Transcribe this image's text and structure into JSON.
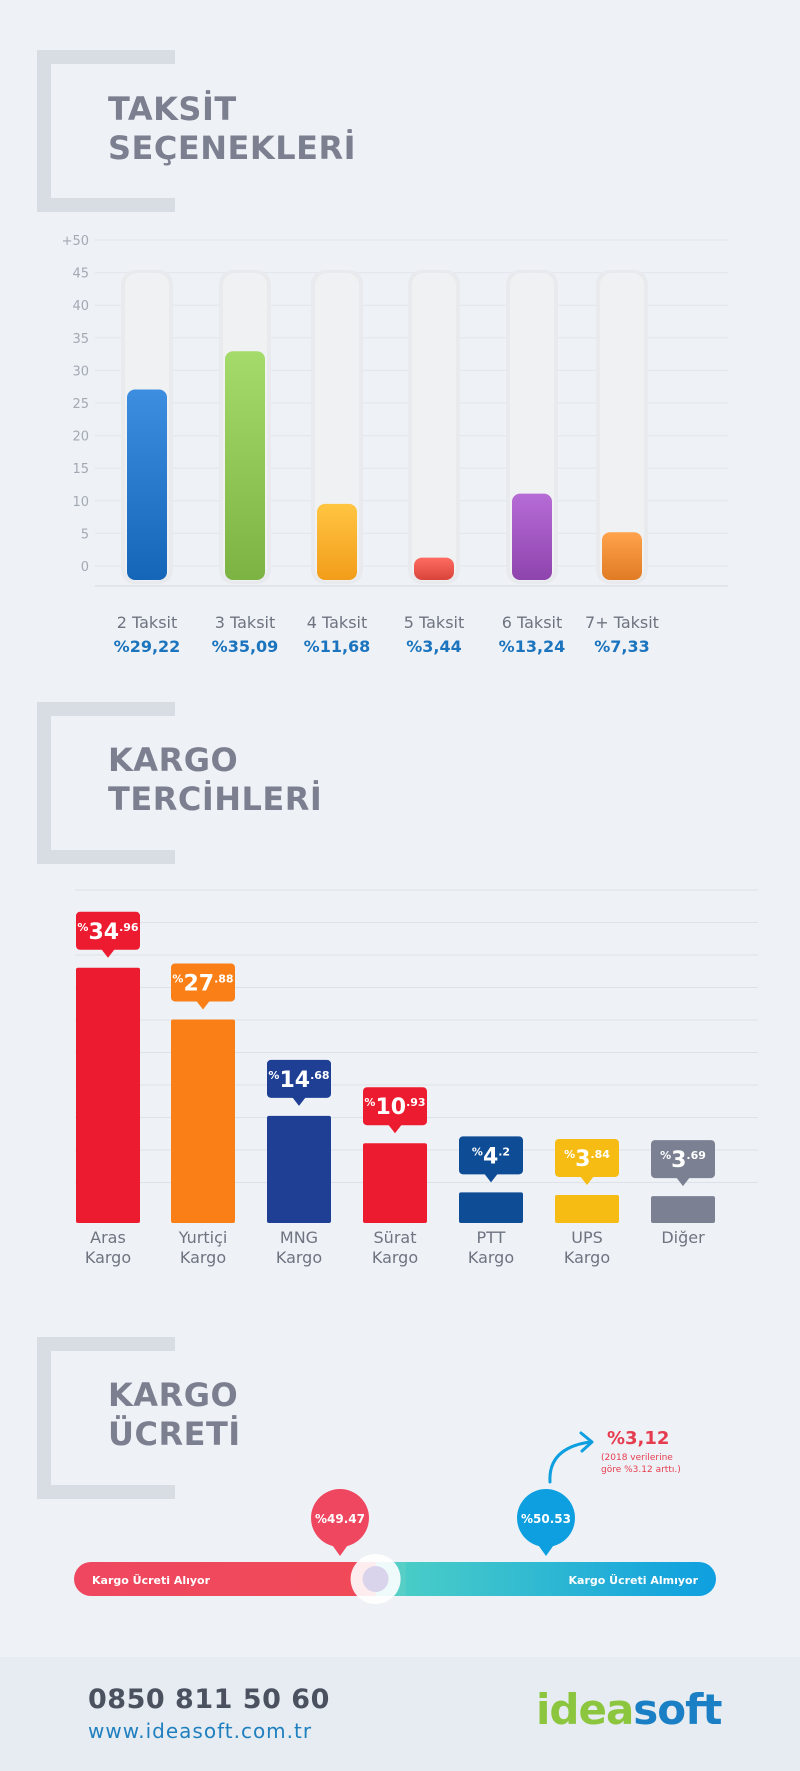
{
  "sections": {
    "installments": {
      "title_line1": "TAKSİT",
      "title_line2": "SEÇENEKLERİ"
    },
    "cargo": {
      "title_line1": "KARGO",
      "title_line2": "TERCİHLERİ"
    },
    "fee": {
      "title_line1": "KARGO",
      "title_line2": "ÜCRETİ"
    }
  },
  "chart_data": [
    {
      "type": "bar",
      "yticks": [
        "+50",
        "45",
        "40",
        "35",
        "30",
        "25",
        "20",
        "15",
        "10",
        "5",
        "0"
      ],
      "ylim": [
        0,
        50
      ],
      "categories": [
        "2 Taksit",
        "3 Taksit",
        "4 Taksit",
        "5 Taksit",
        "6 Taksit",
        "7+ Taksit"
      ],
      "values": [
        29.22,
        35.09,
        11.68,
        3.44,
        13.24,
        7.33
      ],
      "value_labels": [
        "%29,22",
        "%35,09",
        "%11,68",
        "%3,44",
        "%13,24",
        "%7,33"
      ],
      "colors": [
        "#1565b8",
        "#7cb342",
        "#f29d1a",
        "#d9443a",
        "#8e44ad",
        "#e07b24"
      ],
      "grid": true
    },
    {
      "type": "bar",
      "categories": [
        [
          "Aras",
          "Kargo"
        ],
        [
          "Yurtiçi",
          "Kargo"
        ],
        [
          "MNG",
          "Kargo"
        ],
        [
          "Sürat",
          "Kargo"
        ],
        [
          "PTT",
          "Kargo"
        ],
        [
          "UPS",
          "Kargo"
        ],
        [
          "Diğer"
        ]
      ],
      "values": [
        34.96,
        27.88,
        14.68,
        10.93,
        4.2,
        3.84,
        3.69
      ],
      "label_int": [
        "34",
        "27",
        "14",
        "10",
        "4",
        "3",
        "3"
      ],
      "label_dec": [
        "96",
        "88",
        "68",
        "93",
        "2",
        "84",
        "69"
      ],
      "label_prefix": "%",
      "colors": [
        "#ed1b2f",
        "#fb7f17",
        "#1f3f94",
        "#ed1b2f",
        "#0f4c96",
        "#f6bc14",
        "#7b8192"
      ],
      "grid": true
    },
    {
      "type": "bar",
      "categories": [
        "Kargo Ücreti Alıyor",
        "Kargo Ücreti Almıyor"
      ],
      "values": [
        49.47,
        50.53
      ],
      "value_labels": [
        "%49.47",
        "%50.53"
      ],
      "colors": [
        "#f0495c",
        "#0fa3dc"
      ],
      "change_label": "%3,12",
      "change_note_line1": "(2018 verilerine",
      "change_note_line2": "göre %3.12 arttı.)"
    }
  ],
  "footer": {
    "phone": "0850 811 50 60",
    "website": "www.ideasoft.com.tr",
    "logo_part1": "idea",
    "logo_part2": "soft"
  }
}
